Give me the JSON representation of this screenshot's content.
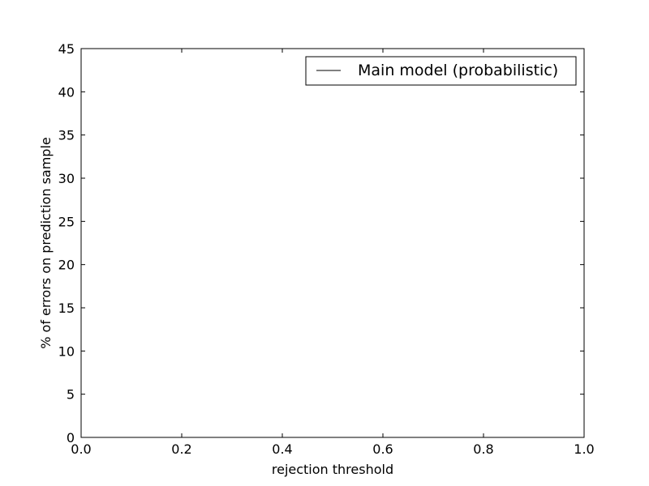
{
  "chart_data": {
    "type": "line",
    "title": "",
    "xlabel": "rejection threshold",
    "ylabel": "% of errors on prediction sample",
    "xlim": [
      0.0,
      1.0
    ],
    "ylim": [
      0,
      45
    ],
    "x_ticks": [
      0.0,
      0.2,
      0.4,
      0.6,
      0.8,
      1.0
    ],
    "x_tick_labels": [
      "0.0",
      "0.2",
      "0.4",
      "0.6",
      "0.8",
      "1.0"
    ],
    "y_ticks": [
      0,
      5,
      10,
      15,
      20,
      25,
      30,
      35,
      40,
      45
    ],
    "y_tick_labels": [
      "0",
      "5",
      "10",
      "15",
      "20",
      "25",
      "30",
      "35",
      "40",
      "45"
    ],
    "grid": false,
    "legend_position": "top-right",
    "series": [
      {
        "name": "Main model (probabilistic)",
        "color": "#000000",
        "x": [],
        "y": []
      }
    ]
  }
}
